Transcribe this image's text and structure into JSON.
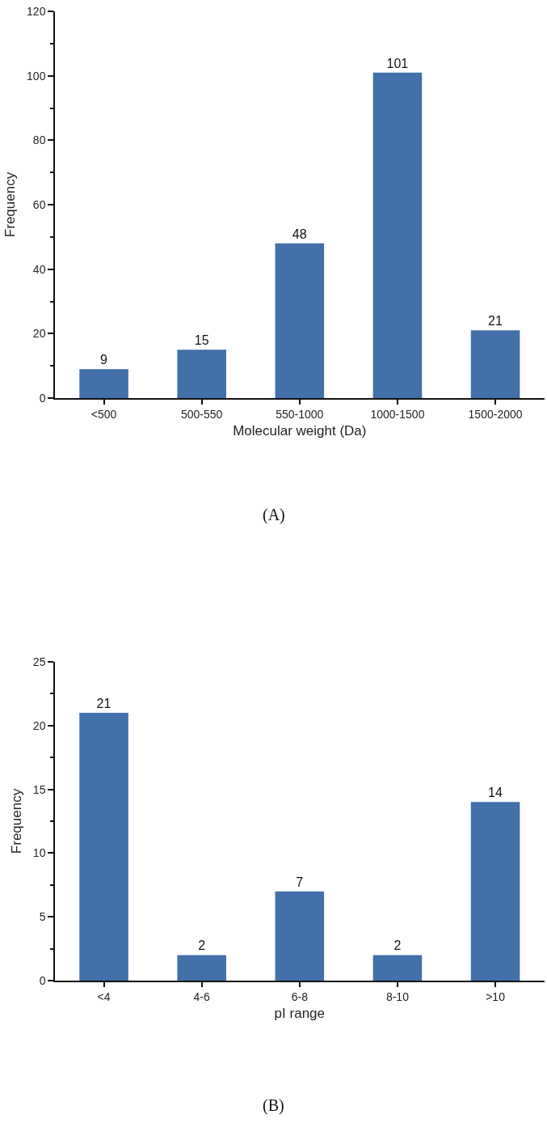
{
  "chart_data": [
    {
      "type": "bar",
      "categories": [
        "<500",
        "500-550",
        "550-1000",
        "1000-1500",
        "1500-2000"
      ],
      "values": [
        9,
        15,
        48,
        101,
        21
      ],
      "color": "#4170aa",
      "xlabel": "Molecular weight (Da)",
      "ylabel": "Frequency",
      "ylim": [
        0,
        120
      ],
      "yticks": [
        0,
        20,
        40,
        60,
        80,
        100,
        120
      ],
      "data_labels": true,
      "annotations": [
        "(A)"
      ]
    },
    {
      "type": "bar",
      "categories": [
        "<4",
        "4-6",
        "6-8",
        "8-10",
        ">10"
      ],
      "values": [
        21,
        2,
        7,
        2,
        14
      ],
      "color": "#4170aa",
      "xlabel": "pI range",
      "ylabel": "Frequency",
      "ylim": [
        0,
        25
      ],
      "yticks": [
        0,
        5,
        10,
        15,
        20,
        25
      ],
      "data_labels": true,
      "annotations": [
        "(B)"
      ]
    }
  ]
}
